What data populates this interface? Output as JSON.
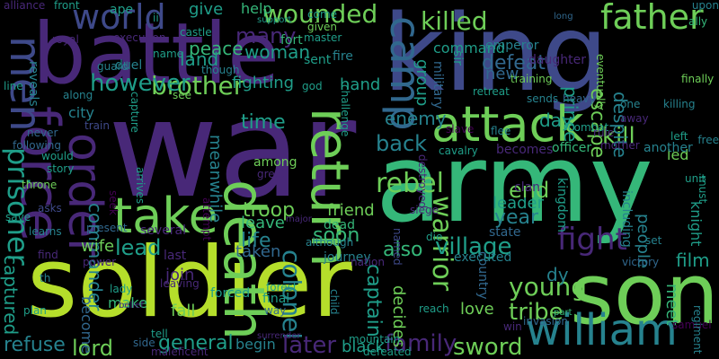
{
  "palette": {
    "background": "#000000",
    "dark_purple": "#440154",
    "purple": "#482878",
    "indigo": "#3e4989",
    "blue": "#31688e",
    "teal": "#26828e",
    "green_teal": "#1f9e89",
    "green": "#35b779",
    "light_green": "#6ece58",
    "lime": "#b5de2b"
  },
  "words": [
    {
      "t": "war"
    },
    {
      "t": "army"
    },
    {
      "t": "soldier"
    },
    {
      "t": "king"
    },
    {
      "t": "battle"
    },
    {
      "t": "son"
    },
    {
      "t": "attack"
    },
    {
      "t": "force"
    },
    {
      "t": "death"
    },
    {
      "t": "take"
    },
    {
      "t": "return"
    },
    {
      "t": "order"
    },
    {
      "t": "william"
    },
    {
      "t": "camp"
    },
    {
      "t": "father"
    },
    {
      "t": "men"
    },
    {
      "t": "world"
    },
    {
      "t": "fight"
    },
    {
      "t": "prisoner"
    },
    {
      "t": "brother"
    },
    {
      "t": "warrior"
    },
    {
      "t": "village"
    },
    {
      "t": "killed"
    },
    {
      "t": "young"
    },
    {
      "t": "however"
    },
    {
      "t": "wounded"
    },
    {
      "t": "time"
    },
    {
      "t": "colonel"
    },
    {
      "t": "rebel"
    },
    {
      "t": "lead"
    },
    {
      "t": "family"
    },
    {
      "t": "sword"
    },
    {
      "t": "tribe"
    },
    {
      "t": "later"
    },
    {
      "t": "general"
    },
    {
      "t": "lord"
    },
    {
      "t": "refuse"
    },
    {
      "t": "life"
    },
    {
      "t": "also"
    },
    {
      "t": "year"
    },
    {
      "t": "leader"
    },
    {
      "t": "soon"
    },
    {
      "t": "back"
    },
    {
      "t": "fighting"
    },
    {
      "t": "troop"
    },
    {
      "t": "enemy"
    },
    {
      "t": "captain"
    },
    {
      "t": "commander"
    },
    {
      "t": "captured"
    },
    {
      "t": "day"
    },
    {
      "t": "kill"
    },
    {
      "t": "escape"
    },
    {
      "t": "prince"
    },
    {
      "t": "defeat"
    },
    {
      "t": "end"
    },
    {
      "t": "group"
    },
    {
      "t": "many"
    },
    {
      "t": "peace"
    },
    {
      "t": "land"
    },
    {
      "t": "woman"
    },
    {
      "t": "hand"
    },
    {
      "t": "friend"
    },
    {
      "t": "film"
    },
    {
      "t": "led"
    },
    {
      "t": "people"
    },
    {
      "t": "despite"
    },
    {
      "t": "meet"
    },
    {
      "t": "knight"
    },
    {
      "t": "love"
    },
    {
      "t": "decides"
    },
    {
      "t": "black"
    },
    {
      "t": "dy"
    },
    {
      "t": "city"
    },
    {
      "t": "join"
    },
    {
      "t": "fall"
    },
    {
      "t": "begin"
    },
    {
      "t": "become"
    },
    {
      "t": "make"
    },
    {
      "t": "wife"
    },
    {
      "t": "meanwhile"
    },
    {
      "t": "taken"
    },
    {
      "t": "leave"
    },
    {
      "t": "command"
    },
    {
      "t": "new"
    },
    {
      "t": "help"
    },
    {
      "t": "give"
    },
    {
      "t": "among"
    },
    {
      "t": "military"
    },
    {
      "t": "sir"
    },
    {
      "t": "emperor"
    },
    {
      "t": "daughter"
    },
    {
      "t": "kingdom"
    },
    {
      "t": "including"
    },
    {
      "t": "country"
    },
    {
      "t": "executed"
    },
    {
      "t": "state"
    },
    {
      "t": "several"
    },
    {
      "t": "last"
    },
    {
      "t": "forced"
    },
    {
      "t": "final"
    },
    {
      "t": "journey"
    },
    {
      "t": "although"
    },
    {
      "t": "reveals"
    },
    {
      "t": "ape"
    },
    {
      "t": "castle"
    },
    {
      "t": "fort"
    },
    {
      "t": "fire"
    },
    {
      "t": "sent"
    },
    {
      "t": "duel"
    },
    {
      "t": "guard"
    },
    {
      "t": "named"
    },
    {
      "t": "dead"
    },
    {
      "t": "siege"
    },
    {
      "t": "clan"
    },
    {
      "t": "officer"
    },
    {
      "t": "mother"
    },
    {
      "t": "another"
    },
    {
      "t": "becomes"
    },
    {
      "t": "cavalry"
    },
    {
      "t": "flee"
    },
    {
      "t": "slave"
    },
    {
      "t": "combat"
    },
    {
      "t": "rule"
    },
    {
      "t": "away"
    },
    {
      "t": "killing"
    },
    {
      "t": "finally"
    },
    {
      "t": "left"
    },
    {
      "t": "free"
    },
    {
      "t": "unit"
    },
    {
      "t": "must"
    },
    {
      "t": "ally"
    },
    {
      "t": "upon"
    },
    {
      "t": "long"
    },
    {
      "t": "one"
    },
    {
      "t": "heavy"
    },
    {
      "t": "sends"
    },
    {
      "t": "training"
    },
    {
      "t": "retreat"
    },
    {
      "t": "eventually"
    },
    {
      "t": "set"
    },
    {
      "t": "part"
    },
    {
      "t": "victory"
    },
    {
      "t": "samuel"
    },
    {
      "t": "regiment"
    },
    {
      "t": "invasion"
    },
    {
      "t": "win"
    },
    {
      "t": "reach"
    },
    {
      "t": "defeated"
    },
    {
      "t": "mountain"
    },
    {
      "t": "child"
    },
    {
      "t": "surrender"
    },
    {
      "t": "forest"
    },
    {
      "t": "way"
    },
    {
      "t": "tell"
    },
    {
      "t": "side"
    },
    {
      "t": "maleficent"
    },
    {
      "t": "leaving"
    },
    {
      "t": "lady"
    },
    {
      "t": "belief"
    },
    {
      "t": "plan"
    },
    {
      "t": "th"
    },
    {
      "t": "find"
    },
    {
      "t": "learns"
    },
    {
      "t": "save"
    },
    {
      "t": "asks"
    },
    {
      "t": "throne"
    },
    {
      "t": "story"
    },
    {
      "t": "would"
    },
    {
      "t": "following"
    },
    {
      "t": "never"
    },
    {
      "t": "train"
    },
    {
      "t": "along"
    },
    {
      "t": "see"
    },
    {
      "t": "capture"
    },
    {
      "t": "arrives"
    },
    {
      "t": "seek"
    },
    {
      "t": "attempt"
    },
    {
      "t": "present"
    },
    {
      "t": "power"
    },
    {
      "t": "nation"
    },
    {
      "t": "die"
    },
    {
      "t": "destroyed"
    },
    {
      "t": "major"
    },
    {
      "t": "great"
    },
    {
      "t": "master"
    },
    {
      "t": "given"
    },
    {
      "t": "come"
    },
    {
      "t": "challenge"
    },
    {
      "t": "god"
    },
    {
      "t": "though"
    },
    {
      "t": "name"
    },
    {
      "t": "support"
    },
    {
      "t": "execution"
    },
    {
      "t": "royal"
    },
    {
      "t": "front"
    },
    {
      "t": "alliance"
    },
    {
      "t": "line"
    },
    {
      "t": "ii"
    }
  ]
}
